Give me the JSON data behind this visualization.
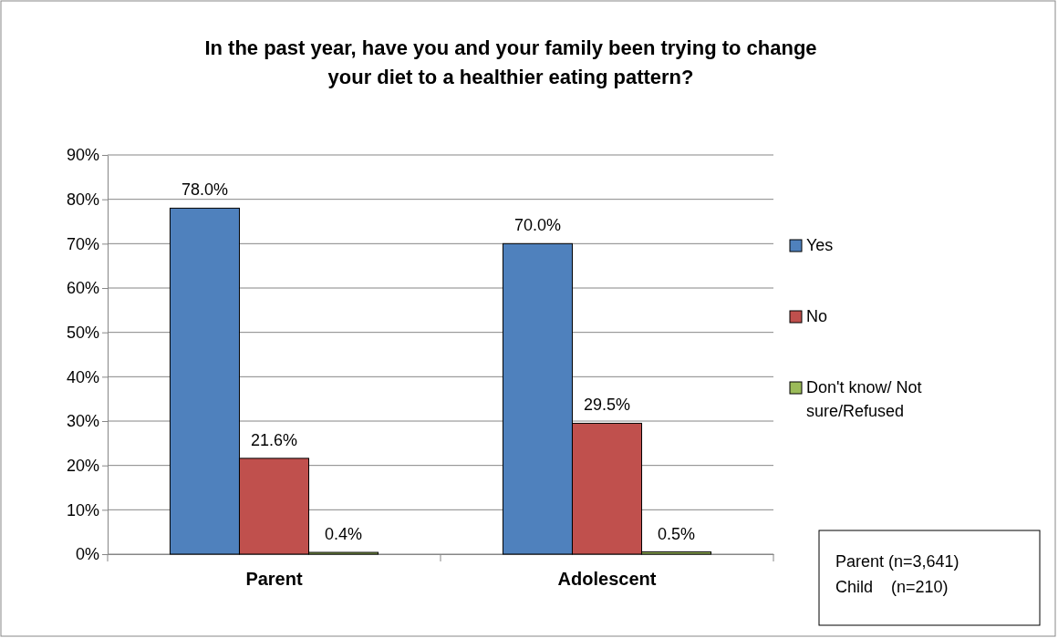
{
  "chart_data": {
    "type": "bar",
    "title": "In the past year, have you and your family been trying to change your diet to a healthier eating pattern?",
    "categories": [
      "Parent",
      "Adolescent"
    ],
    "series": [
      {
        "name": "Yes",
        "color": "#4f81bd",
        "values": [
          78.0,
          70.0
        ],
        "value_labels": [
          "78.0%",
          "70.0%"
        ]
      },
      {
        "name": "No",
        "color": "#c0504d",
        "values": [
          21.6,
          29.5
        ],
        "value_labels": [
          "21.6%",
          "29.5%"
        ]
      },
      {
        "name": "Don't know/ Not sure/Refused",
        "color": "#9bbb59",
        "values": [
          0.4,
          0.5
        ],
        "value_labels": [
          "0.4%",
          "0.5%"
        ]
      }
    ],
    "ylim": [
      0,
      90
    ],
    "yticks": [
      {
        "value": 0,
        "label": "0%"
      },
      {
        "value": 10,
        "label": "10%"
      },
      {
        "value": 20,
        "label": "20%"
      },
      {
        "value": 30,
        "label": "30%"
      },
      {
        "value": 40,
        "label": "40%"
      },
      {
        "value": 50,
        "label": "50%"
      },
      {
        "value": 60,
        "label": "60%"
      },
      {
        "value": 70,
        "label": "70%"
      },
      {
        "value": 80,
        "label": "80%"
      },
      {
        "value": 90,
        "label": "90%"
      }
    ],
    "grid": "y",
    "legend": "right",
    "annotations": [
      "Parent (n=3,641)",
      "Child    (n=210)"
    ]
  }
}
